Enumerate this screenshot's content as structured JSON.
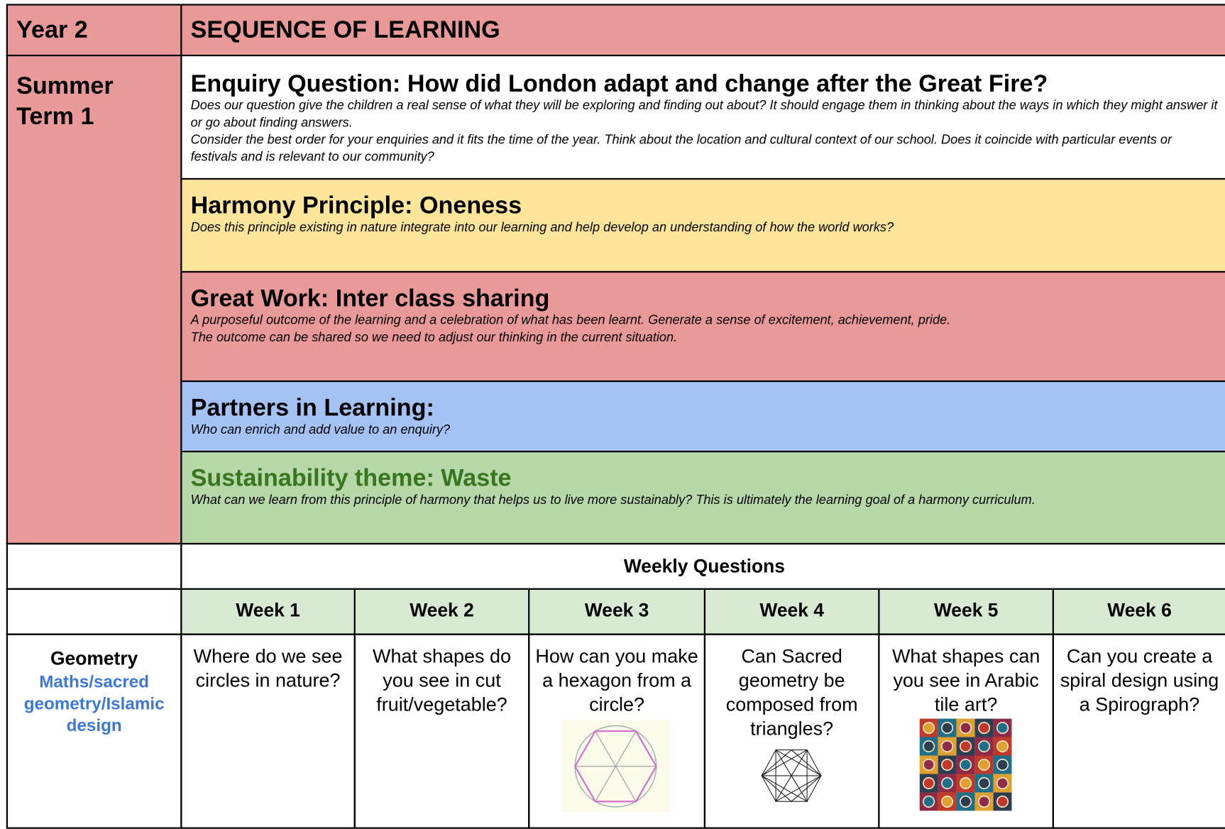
{
  "header": {
    "year": "Year 2",
    "title": "SEQUENCE OF LEARNING"
  },
  "term": "Summer Term 1",
  "sections": [
    {
      "title": "Enquiry Question: How did London adapt and change after the Great Fire?",
      "descriptions": [
        "Does our question give the children a real sense of what they will be exploring and finding out about? It should engage them in thinking about the ways in which they might answer it or go about finding answers.",
        "Consider the best order for your enquiries and it fits the time of the year. Think about the location and cultural context of our school. Does it coincide with particular events or festivals and is relevant to our community?"
      ]
    },
    {
      "title": "Harmony Principle: Oneness",
      "descriptions": [
        "Does this principle existing in nature integrate into our learning and help develop an understanding of how the world works?"
      ]
    },
    {
      "title": "Great Work: Inter class sharing",
      "descriptions": [
        "A purposeful outcome of the learning and a celebration of what has been learnt. Generate a sense of excitement, achievement, pride.",
        "The outcome can be shared so we need to adjust our thinking in the current situation."
      ]
    },
    {
      "title": "Partners in Learning:",
      "descriptions": [
        "Who can enrich and add value to an enquiry?"
      ]
    },
    {
      "title": "Sustainability theme: Waste",
      "descriptions": [
        "What can we learn from this principle of harmony that helps us to live more sustainably? This is ultimately the learning goal of a harmony curriculum."
      ]
    }
  ],
  "weekly_questions": {
    "heading": "Weekly Questions",
    "weeks": [
      {
        "label": "Week 1",
        "question": "Where do we see circles in nature?"
      },
      {
        "label": "Week 2",
        "question": "What shapes do you see in cut fruit/vegetable?"
      },
      {
        "label": "Week 3",
        "question": "How can you make a hexagon from a circle?"
      },
      {
        "label": "Week 4",
        "question": "Can Sacred geometry be composed from triangles?"
      },
      {
        "label": "Week 5",
        "question": "What shapes can you see in Arabic tile art?"
      },
      {
        "label": "Week 6",
        "question": "Can you create a spiral design using a Spirograph?"
      }
    ]
  },
  "subject": {
    "title": "Geometry",
    "subtitle": "Maths/sacred geometry/Islamic design"
  }
}
